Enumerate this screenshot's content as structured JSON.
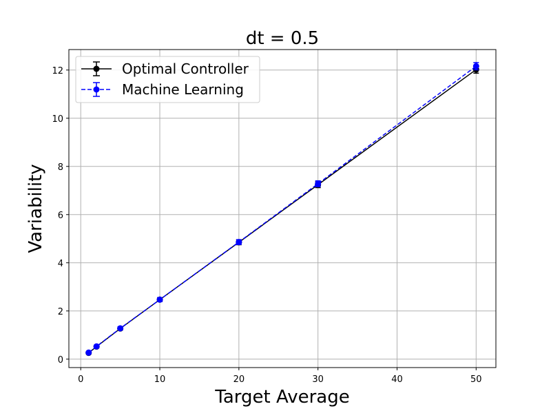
{
  "chart_data": {
    "type": "line",
    "title": "dt = 0.5",
    "xlabel": "Target Average",
    "ylabel": "Variability",
    "xlim": [
      -1.5,
      52.5
    ],
    "ylim": [
      -0.35,
      12.85
    ],
    "xticks": [
      0,
      10,
      20,
      30,
      40,
      50
    ],
    "yticks": [
      0,
      2,
      4,
      6,
      8,
      10,
      12
    ],
    "grid": true,
    "legend_position": "top-left",
    "x": [
      1,
      2,
      5,
      10,
      20,
      30,
      50
    ],
    "series": [
      {
        "name": "Optimal Controller",
        "color": "#000000",
        "linestyle": "solid",
        "marker": "circle",
        "values": [
          0.26,
          0.52,
          1.27,
          2.47,
          4.85,
          7.24,
          12.02
        ],
        "errors": [
          0.04,
          0.05,
          0.06,
          0.08,
          0.1,
          0.12,
          0.15
        ]
      },
      {
        "name": "Machine Learning",
        "color": "#0000ff",
        "linestyle": "dashed",
        "marker": "circle",
        "values": [
          0.27,
          0.53,
          1.28,
          2.47,
          4.86,
          7.28,
          12.16
        ],
        "errors": [
          0.04,
          0.05,
          0.06,
          0.08,
          0.1,
          0.12,
          0.15
        ]
      }
    ]
  }
}
